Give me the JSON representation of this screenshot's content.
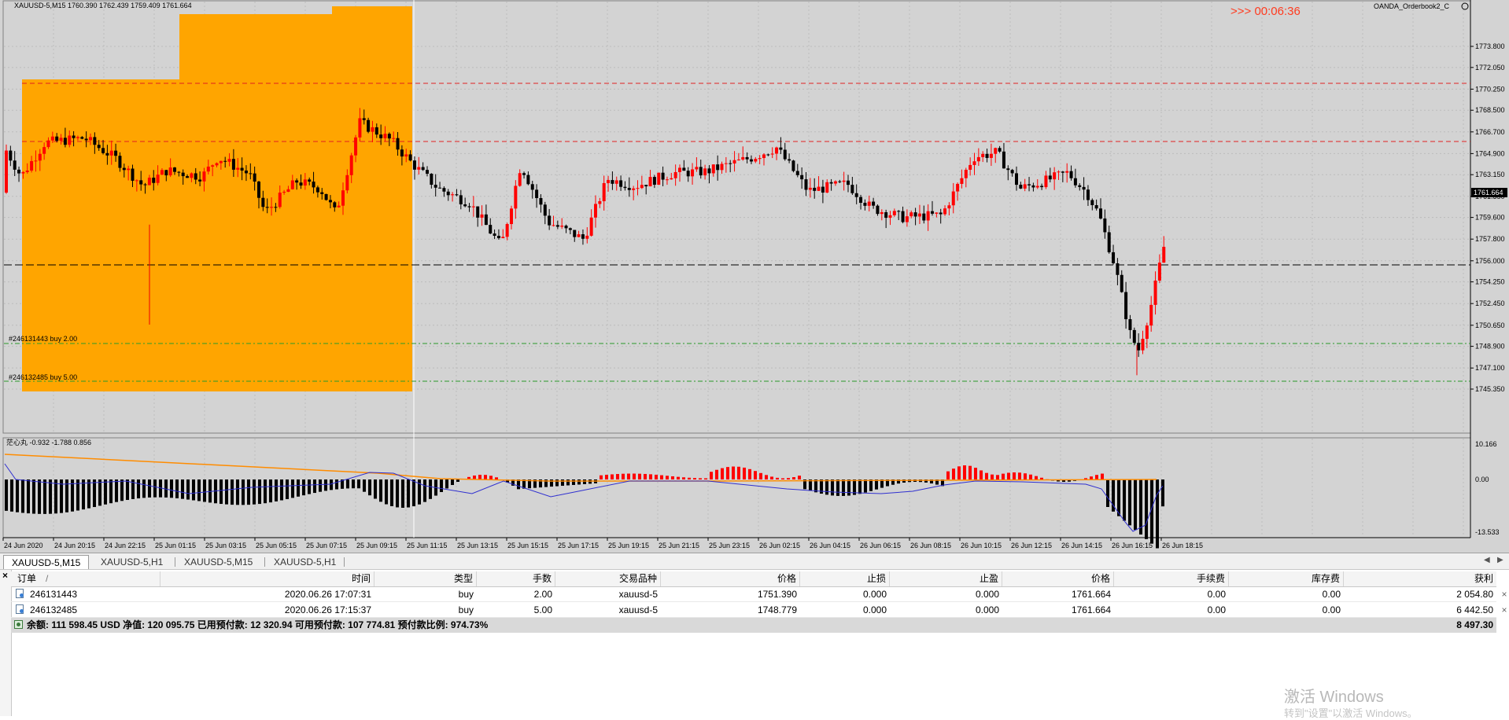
{
  "chart": {
    "header": "XAUUSD-5,M15  1760.390 1762.439 1759.409 1761.664",
    "countdown": ">>> 00:06:36",
    "indicator_name": "OANDA_Orderbook2_C",
    "price_labels": [
      "1773.800",
      "1772.050",
      "1770.250",
      "1768.500",
      "1766.700",
      "1764.900",
      "1763.150",
      "1761.350",
      "1759.600",
      "1757.800",
      "1756.000",
      "1754.250",
      "1752.450",
      "1750.650",
      "1748.900",
      "1747.100",
      "1745.350"
    ],
    "current_price": "1761.664",
    "order_labels": [
      "#246131443 buy 2.00",
      "#246132485 buy 5.00"
    ],
    "osc_label": "茫心丸 -0.932 -1.788 0.856",
    "osc_levels": [
      "10.166",
      "0.00",
      "-13.533"
    ],
    "time_labels": [
      "24 Jun 2020",
      "24 Jun 20:15",
      "24 Jun 22:15",
      "25 Jun 01:15",
      "25 Jun 03:15",
      "25 Jun 05:15",
      "25 Jun 07:15",
      "25 Jun 09:15",
      "25 Jun 11:15",
      "25 Jun 13:15",
      "25 Jun 15:15",
      "25 Jun 17:15",
      "25 Jun 19:15",
      "25 Jun 21:15",
      "25 Jun 23:15",
      "26 Jun 02:15",
      "26 Jun 04:15",
      "26 Jun 06:15",
      "26 Jun 08:15",
      "26 Jun 10:15",
      "26 Jun 12:15",
      "26 Jun 14:15",
      "26 Jun 16:15",
      "26 Jun 18:15"
    ],
    "colors": {
      "bull": "#ff0000",
      "bear": "#000000",
      "buy_book": "#1e90ff",
      "sell_book": "#ffa500",
      "ma": "#ff8c00",
      "osc_line": "#3030d0",
      "grid": "#bcbcbc"
    }
  },
  "tabs": [
    {
      "label": "XAUUSD-5,M15",
      "active": true
    },
    {
      "label": "XAUUSD-5,H1",
      "active": false
    },
    {
      "label": "XAUUSD-5,M15",
      "active": false
    },
    {
      "label": "XAUUSD-5,H1",
      "active": false
    }
  ],
  "table": {
    "columns": [
      "订单",
      "时间",
      "类型",
      "手数",
      "交易品种",
      "价格",
      "止损",
      "止盈",
      "价格",
      "手续费",
      "库存费",
      "获利"
    ],
    "rows": [
      {
        "order": "246131443",
        "time": "2020.06.26 17:07:31",
        "type": "buy",
        "lots": "2.00",
        "symbol": "xauusd-5",
        "open_price": "1751.390",
        "sl": "0.000",
        "tp": "0.000",
        "price": "1761.664",
        "commission": "0.00",
        "swap": "0.00",
        "profit": "2 054.80"
      },
      {
        "order": "246132485",
        "time": "2020.06.26 17:15:37",
        "type": "buy",
        "lots": "5.00",
        "symbol": "xauusd-5",
        "open_price": "1748.779",
        "sl": "0.000",
        "tp": "0.000",
        "price": "1761.664",
        "commission": "0.00",
        "swap": "0.00",
        "profit": "6 442.50"
      }
    ],
    "summary": "余额: 111 598.45 USD  净值: 120 095.75  已用预付款: 12 320.94  可用预付款: 107 774.81  预付款比例: 974.73%",
    "summary_profit": "8 497.30"
  },
  "watermark": {
    "title": "激活 Windows",
    "subtitle": "转到\"设置\"以激活 Windows。"
  }
}
